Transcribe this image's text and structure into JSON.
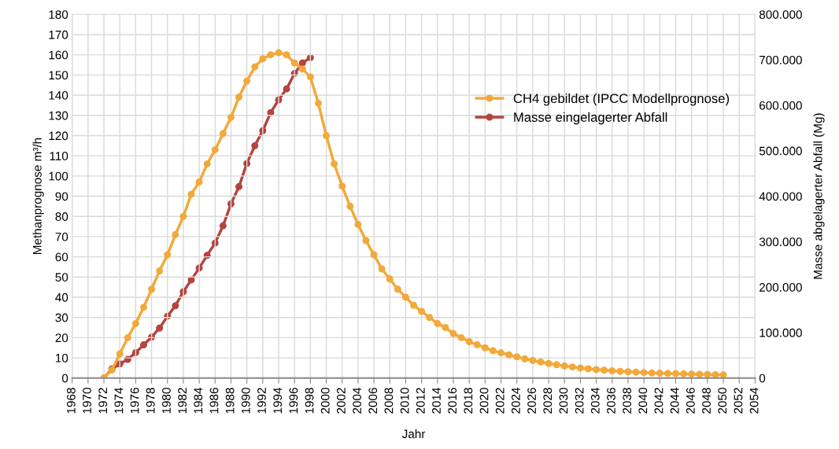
{
  "chart_data": {
    "type": "line",
    "xlabel": "Jahr",
    "ylabel": "Methanprognose m³/h",
    "y2label": "Masse abgelagerter Abfall (Mg)",
    "xlim": [
      1968,
      2054
    ],
    "xticks": [
      1968,
      1970,
      1972,
      1974,
      1976,
      1978,
      1980,
      1982,
      1984,
      1986,
      1988,
      1990,
      1992,
      1994,
      1996,
      1998,
      2000,
      2002,
      2004,
      2006,
      2008,
      2010,
      2012,
      2014,
      2016,
      2018,
      2020,
      2022,
      2024,
      2026,
      2028,
      2030,
      2032,
      2034,
      2036,
      2038,
      2040,
      2042,
      2044,
      2046,
      2048,
      2050,
      2052,
      2054
    ],
    "ylim": [
      0,
      180
    ],
    "yticks": [
      0,
      10,
      20,
      30,
      40,
      50,
      60,
      70,
      80,
      90,
      100,
      110,
      120,
      130,
      140,
      150,
      160,
      170,
      180
    ],
    "y2lim": [
      0,
      800000
    ],
    "y2ticks": [
      {
        "value": 0,
        "label": "0"
      },
      {
        "value": 100000,
        "label": "100.000"
      },
      {
        "value": 200000,
        "label": "200.000"
      },
      {
        "value": 300000,
        "label": "300.000"
      },
      {
        "value": 400000,
        "label": "400.000"
      },
      {
        "value": 500000,
        "label": "500.000"
      },
      {
        "value": 600000,
        "label": "600.000"
      },
      {
        "value": 700000,
        "label": "700.000"
      },
      {
        "value": 800000,
        "label": "800.000"
      }
    ],
    "grid": true,
    "legend": "right",
    "marker": "circle",
    "line_style": "solid",
    "series": [
      {
        "name": "CH4 gebildet (IPCC Modellprognose)",
        "color": "#f2a93b",
        "x": [
          1972,
          1973,
          1974,
          1975,
          1976,
          1977,
          1978,
          1979,
          1980,
          1981,
          1982,
          1983,
          1984,
          1985,
          1986,
          1987,
          1988,
          1989,
          1990,
          1991,
          1992,
          1993,
          1994,
          1995,
          1996,
          1997,
          1998,
          1999,
          2000,
          2001,
          2002,
          2003,
          2004,
          2005,
          2006,
          2007,
          2008,
          2009,
          2010,
          2011,
          2012,
          2013,
          2014,
          2015,
          2016,
          2017,
          2018,
          2019,
          2020,
          2021,
          2022,
          2023,
          2024,
          2025,
          2026,
          2027,
          2028,
          2029,
          2030,
          2031,
          2032,
          2033,
          2034,
          2035,
          2036,
          2037,
          2038,
          2039,
          2040,
          2041,
          2042,
          2043,
          2044,
          2045,
          2046,
          2047,
          2048,
          2049,
          2050
        ],
        "values": [
          0,
          4,
          12,
          20,
          27,
          35,
          44,
          53,
          61,
          71,
          80,
          91,
          97,
          106,
          113,
          121,
          129,
          139,
          147,
          154,
          158,
          160,
          161,
          160,
          156,
          153,
          149,
          136,
          120,
          106,
          95,
          85,
          76,
          68,
          61,
          54,
          49,
          44,
          40,
          36,
          33,
          30,
          27,
          25,
          22,
          20,
          18,
          16.5,
          15,
          13.5,
          12.5,
          11.5,
          10.5,
          9.5,
          8.7,
          8,
          7.2,
          6.6,
          6,
          5.5,
          5,
          4.6,
          4.2,
          3.9,
          3.6,
          3.3,
          3.1,
          2.9,
          2.7,
          2.5,
          2.4,
          2.3,
          2.2,
          2.1,
          2,
          1.9,
          1.8,
          1.7,
          1.6
        ]
      },
      {
        "name": "Masse eingelagerter Abfall",
        "color": "#b5443f",
        "axis": "y2",
        "x": [
          1972,
          1973,
          1974,
          1975,
          1976,
          1977,
          1978,
          1979,
          1980,
          1981,
          1982,
          1983,
          1984,
          1985,
          1986,
          1987,
          1988,
          1989,
          1990,
          1991,
          1992,
          1993,
          1994,
          1995,
          1996,
          1997,
          1998
        ],
        "values": [
          0,
          20000,
          31000,
          41000,
          56000,
          73000,
          90000,
          110000,
          136000,
          159000,
          190000,
          216000,
          242000,
          270000,
          297000,
          335000,
          383000,
          421000,
          472000,
          511000,
          544000,
          584000,
          612000,
          636000,
          670000,
          693000,
          705000
        ]
      }
    ]
  }
}
